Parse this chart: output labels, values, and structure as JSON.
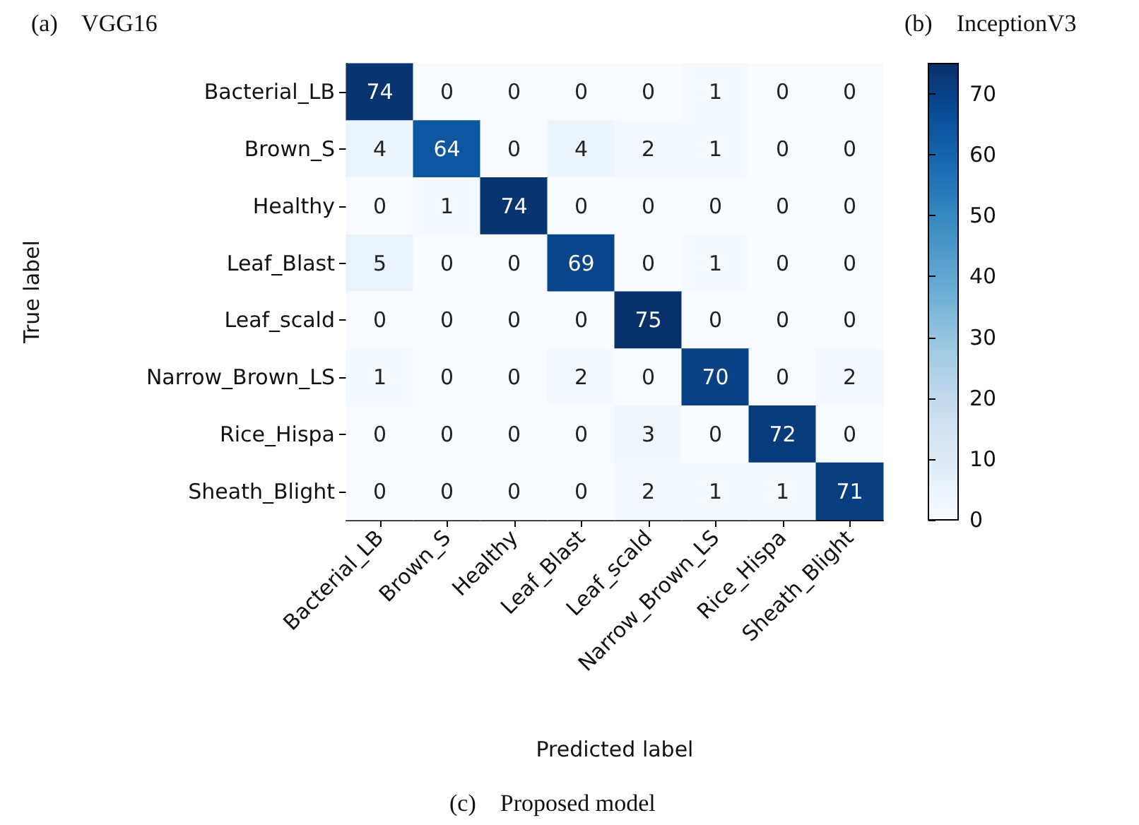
{
  "chart_data": {
    "type": "heatmap",
    "annotations": [
      "(a)    VGG16",
      "(b)    InceptionV3",
      "(c)    Proposed model"
    ],
    "xlabel": "Predicted label",
    "ylabel": "True label",
    "categories": [
      "Bacterial_LB",
      "Brown_S",
      "Healthy",
      "Leaf_Blast",
      "Leaf_scald",
      "Narrow_Brown_LS",
      "Rice_Hispa",
      "Sheath_Blight"
    ],
    "y_categories": [
      "Bacterial_LB",
      "Brown_S",
      "Healthy",
      "Leaf_Blast",
      "Leaf_scald",
      "Narrow_Brown_LS",
      "Rice_Hispa",
      "Sheath_Blight"
    ],
    "cells": [
      [
        74,
        0,
        0,
        0,
        0,
        1,
        0,
        0
      ],
      [
        4,
        64,
        0,
        4,
        2,
        1,
        0,
        0
      ],
      [
        0,
        1,
        74,
        0,
        0,
        0,
        0,
        0
      ],
      [
        5,
        0,
        0,
        69,
        0,
        1,
        0,
        0
      ],
      [
        0,
        0,
        0,
        0,
        75,
        0,
        0,
        0
      ],
      [
        1,
        0,
        0,
        2,
        0,
        70,
        0,
        2
      ],
      [
        0,
        0,
        0,
        0,
        3,
        0,
        72,
        0
      ],
      [
        0,
        0,
        0,
        0,
        2,
        1,
        1,
        71
      ]
    ],
    "clim": [
      0,
      75
    ],
    "cticks": [
      0,
      10,
      20,
      30,
      40,
      50,
      60,
      70
    ],
    "data_labels": true
  }
}
